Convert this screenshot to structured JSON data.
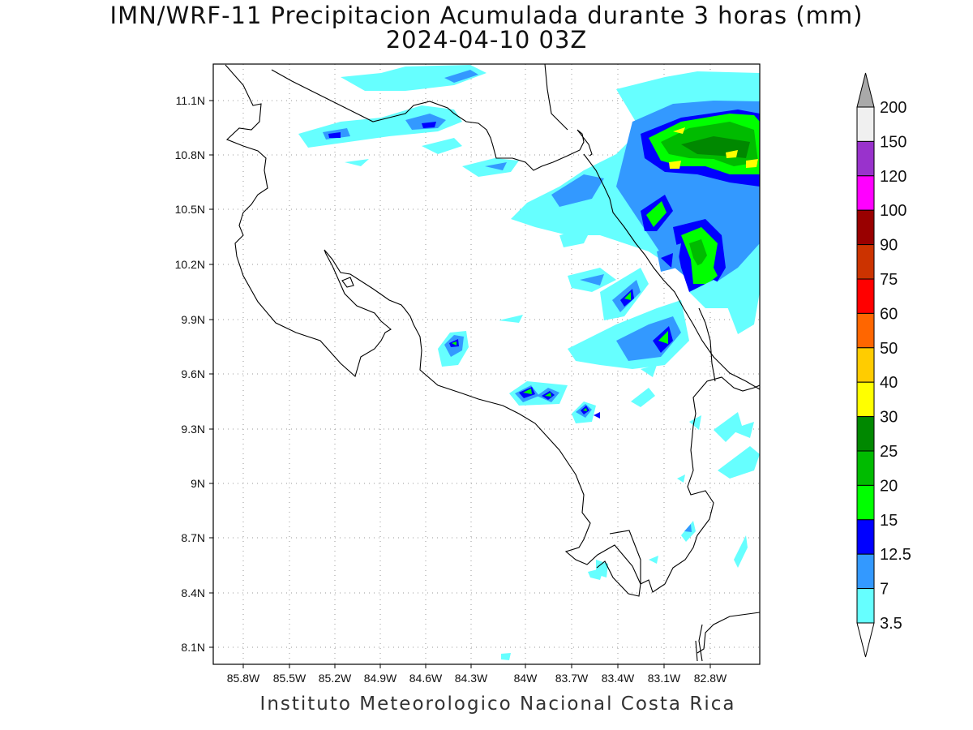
{
  "title": {
    "line1": "IMN/WRF-11 Precipitacion Acumulada durante 3 horas (mm)",
    "line2": "2024-04-10 03Z"
  },
  "footer": "Instituto Meteorologico Nacional Costa Rica",
  "axes": {
    "x_ticks": [
      "85.8W",
      "85.5W",
      "85.2W",
      "84.9W",
      "84.6W",
      "84.3W",
      "84W",
      "83.7W",
      "83.4W",
      "83.1W",
      "82.8W"
    ],
    "y_ticks": [
      "11.1N",
      "10.8N",
      "10.5N",
      "10.2N",
      "9.9N",
      "9.6N",
      "9.3N",
      "9N",
      "8.7N",
      "8.4N",
      "8.1N"
    ]
  },
  "colorbar": {
    "labels": [
      "200",
      "150",
      "120",
      "100",
      "90",
      "75",
      "60",
      "50",
      "40",
      "30",
      "25",
      "20",
      "15",
      "12.5",
      "7",
      "3.5"
    ],
    "colors": [
      "#f0f0f0",
      "#9932cc",
      "#ff00ff",
      "#990000",
      "#cc3300",
      "#ff0000",
      "#ff6600",
      "#ffcc00",
      "#ffff00",
      "#008800",
      "#00bb00",
      "#00ff00",
      "#0000ff",
      "#3399ff",
      "#66ffff"
    ],
    "over_color": "#a9a9a9",
    "under_color": "#ffffff"
  }
}
